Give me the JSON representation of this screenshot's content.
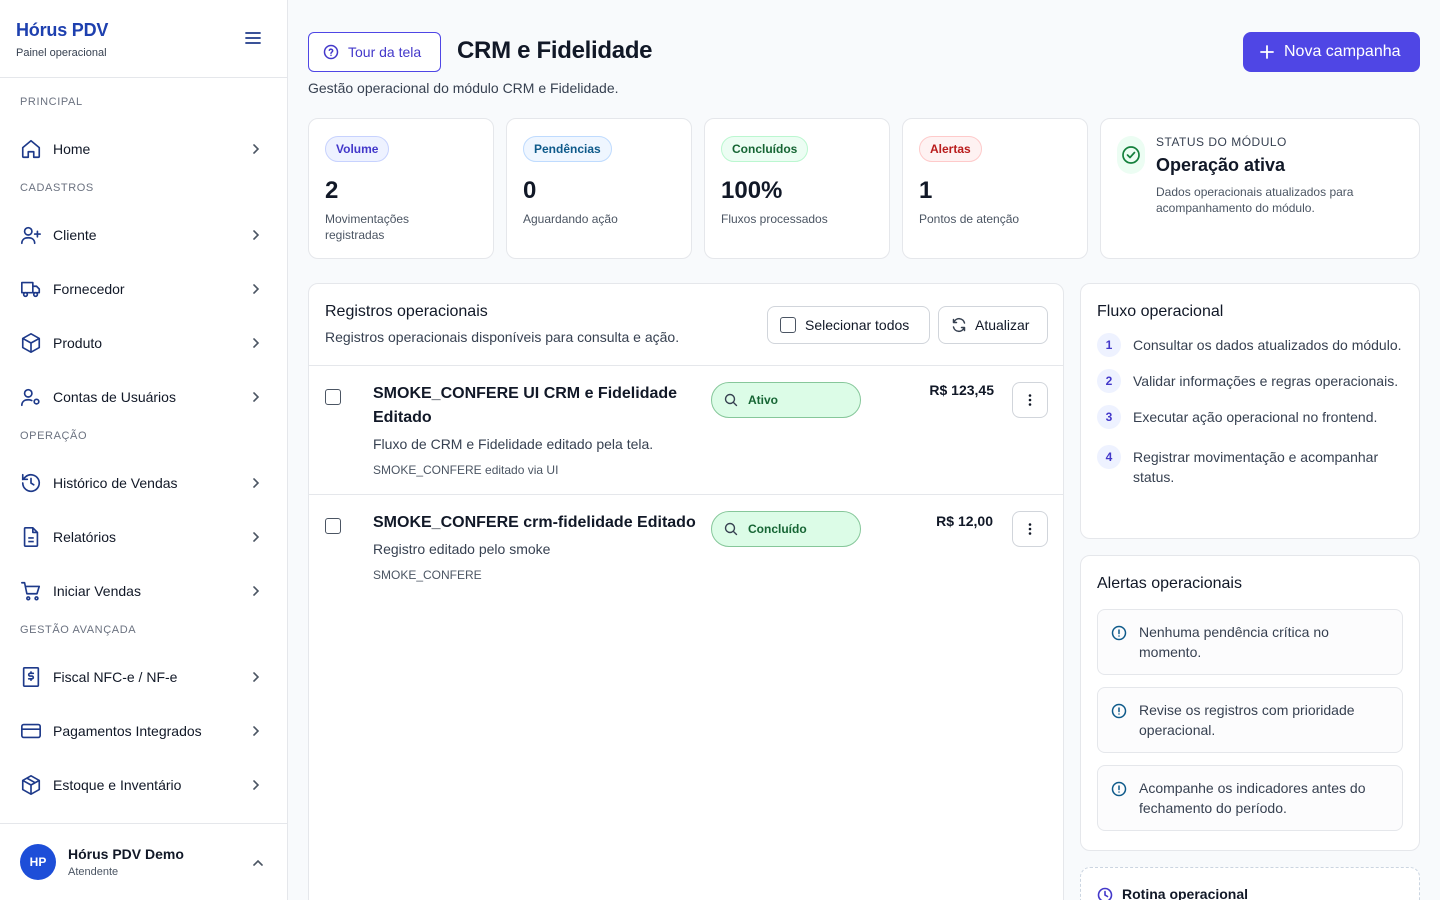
{
  "sidebar": {
    "brand_name": "Hórus PDV",
    "brand_sub": "Painel operacional",
    "sections": [
      {
        "title": "PRINCIPAL",
        "items": [
          {
            "label": "Home",
            "icon": "home-icon"
          }
        ]
      },
      {
        "title": "CADASTROS",
        "items": [
          {
            "label": "Cliente",
            "icon": "user-plus-icon"
          },
          {
            "label": "Fornecedor",
            "icon": "truck-icon"
          },
          {
            "label": "Produto",
            "icon": "package-icon"
          },
          {
            "label": "Contas de Usuários",
            "icon": "user-cog-icon"
          }
        ]
      },
      {
        "title": "OPERAÇÃO",
        "items": [
          {
            "label": "Histórico de Vendas",
            "icon": "history-icon"
          },
          {
            "label": "Relatórios",
            "icon": "file-text-icon"
          },
          {
            "label": "Iniciar Vendas",
            "icon": "cart-icon"
          }
        ]
      },
      {
        "title": "GESTÃO AVANÇADA",
        "items": [
          {
            "label": "Fiscal NFC-e / NF-e",
            "icon": "receipt-icon"
          },
          {
            "label": "Pagamentos Integrados",
            "icon": "credit-card-icon"
          },
          {
            "label": "Estoque e Inventário",
            "icon": "box-icon"
          }
        ]
      }
    ],
    "user": {
      "initials": "HP",
      "name": "Hórus PDV Demo",
      "role": "Atendente"
    }
  },
  "header": {
    "tour_label": "Tour da tela",
    "title": "CRM e Fidelidade",
    "description": "Gestão operacional do módulo CRM e Fidelidade.",
    "new_label": "Nova campanha"
  },
  "kpis": [
    {
      "badge": "Volume",
      "value": "2",
      "label": "Movimentações registradas"
    },
    {
      "badge": "Pendências",
      "value": "0",
      "label": "Aguardando ação"
    },
    {
      "badge": "Concluídos",
      "value": "100%",
      "label": "Fluxos processados"
    },
    {
      "badge": "Alertas",
      "value": "1",
      "label": "Pontos de atenção"
    }
  ],
  "status": {
    "eyebrow": "STATUS DO MÓDULO",
    "title": "Operação ativa",
    "description": "Dados operacionais atualizados para acompanhamento do módulo."
  },
  "records": {
    "title": "Registros operacionais",
    "subtitle": "Registros operacionais disponíveis para consulta e ação.",
    "select_all_label": "Selecionar todos",
    "refresh_label": "Atualizar",
    "rows": [
      {
        "title": "SMOKE_CONFERE UI CRM e Fidelidade Editado",
        "description": "Fluxo de CRM e Fidelidade editado pela tela.",
        "code": "SMOKE_CONFERE editado via UI",
        "status": "Ativo",
        "amount": "R$ 123,45"
      },
      {
        "title": "SMOKE_CONFERE crm-fidelidade Editado",
        "description": "Registro editado pelo smoke",
        "code": "SMOKE_CONFERE",
        "status": "Concluído",
        "amount": "R$ 12,00"
      }
    ]
  },
  "flow": {
    "title": "Fluxo operacional",
    "steps": [
      {
        "num": "1",
        "text": "Consultar os dados atualizados do módulo."
      },
      {
        "num": "2",
        "text": "Validar informações e regras operacionais."
      },
      {
        "num": "3",
        "text": "Executar ação operacional no frontend."
      },
      {
        "num": "4",
        "text": "Registrar movimentação e acompanhar status."
      }
    ]
  },
  "alerts": {
    "title": "Alertas operacionais",
    "items": [
      "Nenhuma pendência crítica no momento.",
      "Revise os registros com prioridade operacional.",
      "Acompanhe os indicadores antes do fechamento do período."
    ]
  },
  "routine": {
    "title": "Rotina operacional"
  },
  "colors": {
    "accent": "#4f46e5",
    "brand": "#1e40af",
    "success": "#166534",
    "danger": "#b91c1c"
  }
}
